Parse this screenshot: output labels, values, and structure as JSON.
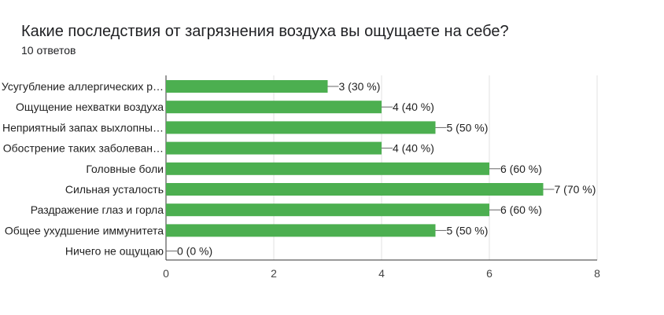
{
  "header": {
    "title": "Какие последствия от загрязнения воздуха вы ощущаете на себе?",
    "responses": "10 ответов"
  },
  "chart_data": {
    "type": "bar",
    "orientation": "horizontal",
    "categories": [
      "Усугубление аллергических р…",
      "Ощущение нехватки воздуха",
      "Неприятный запах выхлопны…",
      "Обострение таких заболеван…",
      "Головные боли",
      "Сильная усталость",
      "Раздражение глаз и горла",
      "Общее ухудшение иммунитета",
      "Ничего не ощущаю"
    ],
    "values": [
      3,
      4,
      5,
      4,
      6,
      7,
      6,
      5,
      0
    ],
    "data_labels": [
      "3 (30 %)",
      "4 (40 %)",
      "5 (50 %)",
      "4 (40 %)",
      "6 (60 %)",
      "7 (70 %)",
      "6 (60 %)",
      "5 (50 %)",
      "0 (0 %)"
    ],
    "x_ticks": [
      "0",
      "2",
      "4",
      "6",
      "8"
    ],
    "xlim": [
      0,
      8
    ],
    "grid": true,
    "bar_color": "#4caf50"
  }
}
